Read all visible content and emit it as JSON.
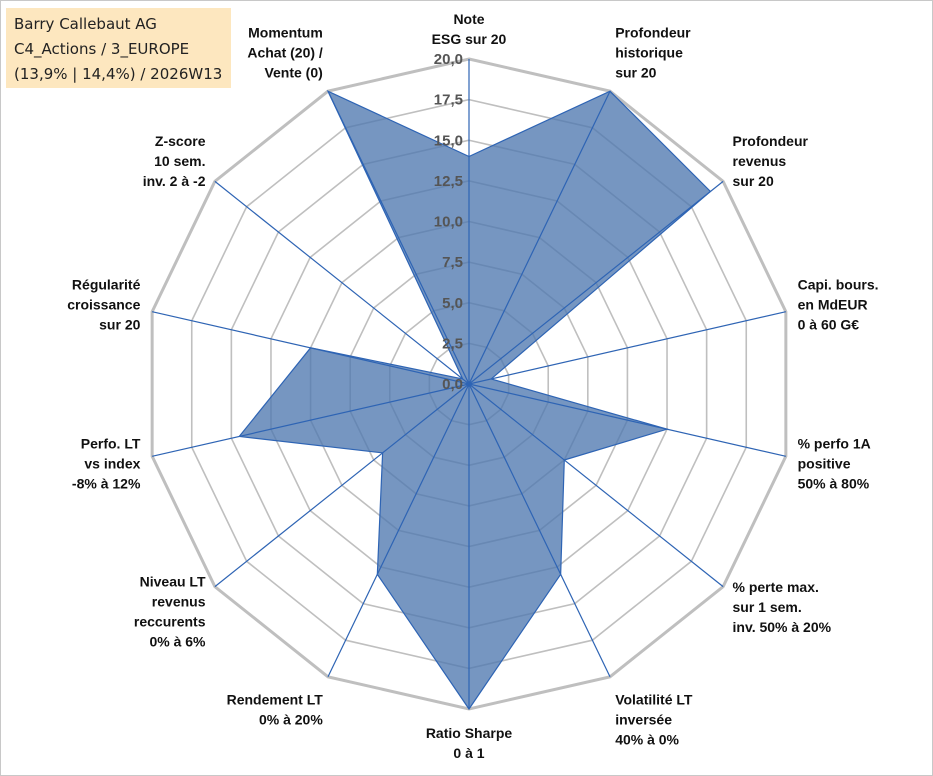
{
  "infobox": {
    "line1": "Barry Callebaut AG",
    "line2": "C4_Actions / 3_EUROPE",
    "line3": "(13,9% | 14,4%) / 2026W13"
  },
  "chart_data": {
    "type": "radar",
    "title": "",
    "rlim": [
      0,
      20
    ],
    "grid": true,
    "ticks": [
      "0,0",
      "2,5",
      "5,0",
      "7,5",
      "10,0",
      "12,5",
      "15,0",
      "17,5",
      "20,0"
    ],
    "axes": [
      [
        "Note",
        "ESG sur 20"
      ],
      [
        "Profondeur",
        "historique",
        "sur 20"
      ],
      [
        "Profondeur",
        "revenus",
        "sur 20"
      ],
      [
        "Capi. bours.",
        "en MdEUR",
        "0 à 60 G€"
      ],
      [
        "% perfo 1A",
        "positive",
        "50% à 80%"
      ],
      [
        "% perte max.",
        "sur 1 sem.",
        "inv. 50% à 20%"
      ],
      [
        "Volatilité LT",
        "inversée",
        "40% à 0%"
      ],
      [
        "Ratio Sharpe",
        "0 à 1"
      ],
      [
        "Rendement LT",
        "0% à 20%"
      ],
      [
        "Niveau LT",
        "revenus",
        "reccurents",
        "0% à 6%"
      ],
      [
        "Perfo. LT",
        "vs index",
        "-8% à 12%"
      ],
      [
        "Régularité",
        "croissance",
        "sur 20"
      ],
      [
        "Z-score",
        "10 sem.",
        "inv. 2 à -2"
      ],
      [
        "Momentum",
        "Achat (20) /",
        "Vente (0)"
      ]
    ],
    "values": [
      14,
      20,
      19,
      1.4,
      12.5,
      7.5,
      13,
      20,
      13,
      6.8,
      14.5,
      10,
      0.5,
      20
    ],
    "fill_color": "#4f79b0",
    "fill_opacity": 0.78,
    "line_color": "#2e64b4",
    "grid_color": "#bfbfbf"
  }
}
